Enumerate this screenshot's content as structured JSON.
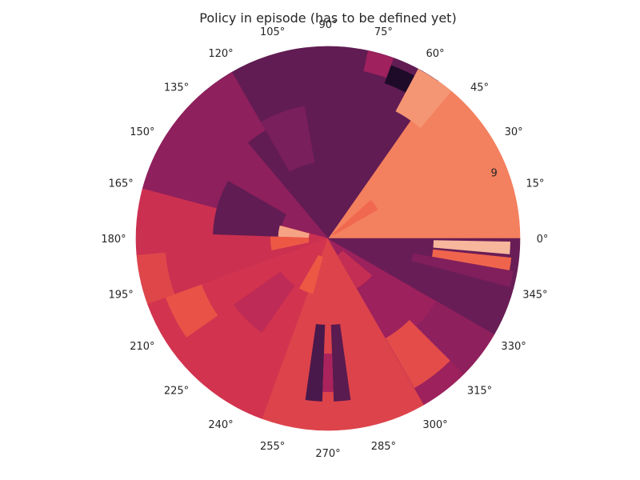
{
  "chart_data": {
    "type": "heatmap",
    "projection": "polar",
    "title": "Policy in episode (has to be defined yet)",
    "angular_tick_labels": [
      "0°",
      "15°",
      "30°",
      "45°",
      "60°",
      "75°",
      "90°",
      "105°",
      "120°",
      "135°",
      "150°",
      "165°",
      "180°",
      "195°",
      "210°",
      "225°",
      "240°",
      "255°",
      "270°",
      "285°",
      "300°",
      "315°",
      "330°",
      "345°"
    ],
    "angular_tick_values_deg": [
      0,
      15,
      30,
      45,
      60,
      75,
      90,
      105,
      120,
      135,
      150,
      165,
      180,
      195,
      210,
      225,
      240,
      255,
      270,
      285,
      300,
      315,
      330,
      345
    ],
    "radial_tick_labels": [
      "9"
    ],
    "radial_tick_values": [
      9
    ],
    "rlim": [
      0,
      10
    ],
    "grid": false,
    "colormap": [
      "#1e0b29",
      "#4b1a4c",
      "#7d1f5c",
      "#a8225e",
      "#d2334f",
      "#ee5a45",
      "#f48c67",
      "#f6b59a",
      "#fbe0cf"
    ],
    "sectors": [
      {
        "theta": [
          0,
          15
        ],
        "value": 0.72
      },
      {
        "theta": [
          15,
          55
        ],
        "value": 0.72
      },
      {
        "theta": [
          55,
          80
        ],
        "value": 0.18
      },
      {
        "theta": [
          80,
          130
        ],
        "value": 0.18
      },
      {
        "theta": [
          130,
          165
        ],
        "value": 0.3
      },
      {
        "theta": [
          165,
          200
        ],
        "value": 0.48
      },
      {
        "theta": [
          200,
          250
        ],
        "value": 0.5
      },
      {
        "theta": [
          250,
          300
        ],
        "value": 0.55
      },
      {
        "theta": [
          300,
          330
        ],
        "value": 0.34
      },
      {
        "theta": [
          330,
          360
        ],
        "value": 0.2
      }
    ],
    "patches": [
      {
        "theta": [
          62,
          70
        ],
        "r": [
          8.6,
          9.6
        ],
        "value": 0.0
      },
      {
        "theta": [
          70,
          78
        ],
        "r": [
          8.9,
          10.0
        ],
        "value": 0.35
      },
      {
        "theta": [
          50,
          62
        ],
        "r": [
          7.5,
          10.0
        ],
        "value": 0.78
      },
      {
        "theta": [
          150,
          178
        ],
        "r": [
          2.5,
          6.0
        ],
        "value": 0.18
      },
      {
        "theta": [
          165,
          178
        ],
        "r": [
          1.0,
          2.6
        ],
        "value": 0.82
      },
      {
        "theta": [
          178,
          192
        ],
        "r": [
          1.0,
          3.0
        ],
        "value": 0.62
      },
      {
        "theta": [
          262,
          268
        ],
        "r": [
          4.5,
          8.5
        ],
        "value": 0.12
      },
      {
        "theta": [
          272,
          278
        ],
        "r": [
          4.5,
          8.5
        ],
        "value": 0.16
      },
      {
        "theta": [
          268,
          272
        ],
        "r": [
          6.0,
          8.0
        ],
        "value": 0.38
      },
      {
        "theta": [
          355,
          359
        ],
        "r": [
          5.5,
          9.5
        ],
        "value": 0.88
      },
      {
        "theta": [
          350,
          354
        ],
        "r": [
          5.5,
          9.6
        ],
        "value": 0.65
      },
      {
        "theta": [
          345,
          350
        ],
        "r": [
          4.5,
          9.8
        ],
        "value": 0.26
      },
      {
        "theta": [
          315,
          330
        ],
        "r": [
          6.5,
          10.0
        ],
        "value": 0.3
      },
      {
        "theta": [
          300,
          315
        ],
        "r": [
          6.0,
          9.0
        ],
        "value": 0.58
      },
      {
        "theta": [
          215,
          235
        ],
        "r": [
          3.0,
          6.0
        ],
        "value": 0.44
      },
      {
        "theta": [
          120,
          140
        ],
        "r": [
          6.5,
          10.0
        ],
        "value": 0.3
      },
      {
        "theta": [
          100,
          120
        ],
        "r": [
          4.0,
          7.0
        ],
        "value": 0.24
      },
      {
        "theta": [
          200,
          215
        ],
        "r": [
          7.0,
          9.0
        ],
        "value": 0.6
      },
      {
        "theta": [
          185,
          200
        ],
        "r": [
          8.5,
          10.0
        ],
        "value": 0.56
      },
      {
        "theta": [
          30,
          42
        ],
        "r": [
          0.3,
          3.0
        ],
        "value": 0.66
      },
      {
        "theta": [
          300,
          320
        ],
        "r": [
          1.0,
          3.0
        ],
        "value": 0.46
      },
      {
        "theta": [
          240,
          255
        ],
        "r": [
          1.0,
          3.0
        ],
        "value": 0.62
      }
    ]
  }
}
